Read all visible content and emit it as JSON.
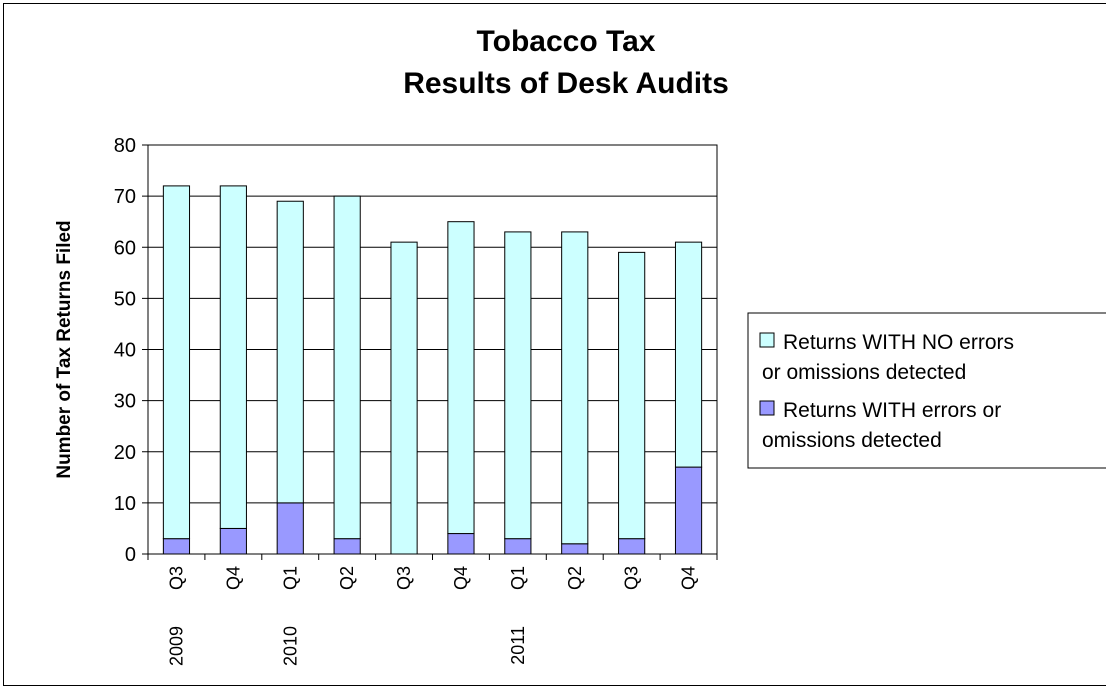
{
  "chart_data": {
    "type": "bar",
    "stacked": true,
    "title": [
      "Tobacco Tax",
      "Results of Desk Audits"
    ],
    "ylabel": "Number of Tax Returns Filed",
    "ylim": [
      0,
      80
    ],
    "yticks": [
      0,
      10,
      20,
      30,
      40,
      50,
      60,
      70,
      80
    ],
    "categories": [
      "2009 Q3",
      "Q4",
      "2010 Q1",
      "Q2",
      "Q3",
      "Q4",
      "2011 Q1",
      "Q2",
      "Q3",
      "Q4"
    ],
    "category_labels": [
      {
        "quarter": "Q3",
        "year": "2009"
      },
      {
        "quarter": "Q4",
        "year": ""
      },
      {
        "quarter": "Q1",
        "year": "2010"
      },
      {
        "quarter": "Q2",
        "year": ""
      },
      {
        "quarter": "Q3",
        "year": ""
      },
      {
        "quarter": "Q4",
        "year": ""
      },
      {
        "quarter": "Q1",
        "year": "2011"
      },
      {
        "quarter": "Q2",
        "year": ""
      },
      {
        "quarter": "Q3",
        "year": ""
      },
      {
        "quarter": "Q4",
        "year": ""
      }
    ],
    "series": [
      {
        "name": "Returns WITH errors or omissions detected",
        "legend_lines": [
          "Returns WITH errors or",
          "omissions detected"
        ],
        "color": "#9999ff",
        "values": [
          3,
          5,
          10,
          3,
          0,
          4,
          3,
          2,
          3,
          17
        ]
      },
      {
        "name": "Returns WITH NO errors or omissions detected",
        "legend_lines": [
          "Returns WITH NO errors",
          "or omissions detected"
        ],
        "color": "#ccffff",
        "values": [
          69,
          67,
          59,
          67,
          61,
          61,
          60,
          61,
          56,
          44
        ]
      }
    ],
    "legend_order": [
      1,
      0
    ],
    "grid": true,
    "legend_position": "right"
  }
}
